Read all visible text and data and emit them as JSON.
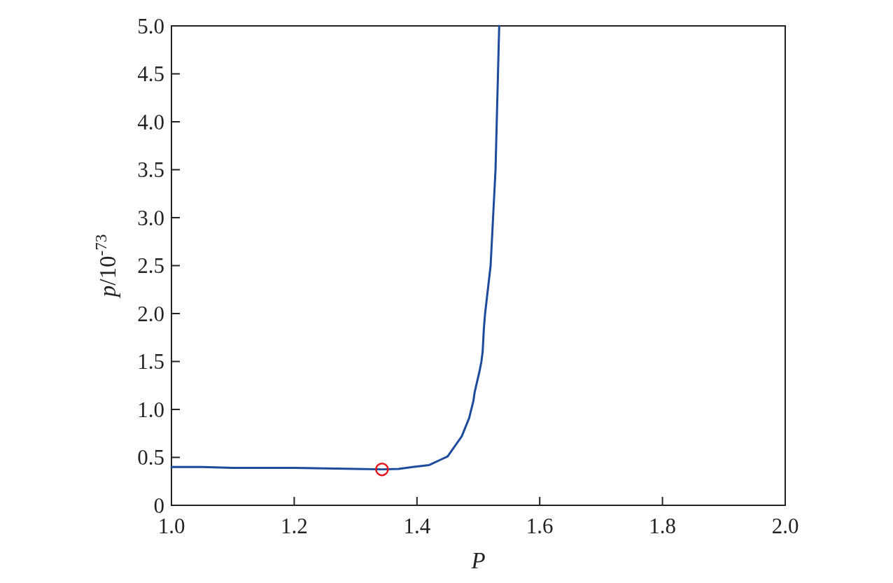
{
  "chart_data": {
    "type": "line",
    "xlabel": "P",
    "ylabel": "p/10$^{-73}$",
    "xlim": [
      1.0,
      2.0
    ],
    "ylim": [
      0,
      5.0
    ],
    "xticks": [
      {
        "value": 1.0,
        "label": "1.0"
      },
      {
        "value": 1.2,
        "label": "1.2"
      },
      {
        "value": 1.4,
        "label": "1.4"
      },
      {
        "value": 1.6,
        "label": "1.6"
      },
      {
        "value": 1.8,
        "label": "1.8"
      },
      {
        "value": 2.0,
        "label": "2.0"
      }
    ],
    "yticks": [
      0,
      {
        "value": 0.5,
        "label": "0.5"
      },
      {
        "value": 1.0,
        "label": "1.0"
      },
      {
        "value": 1.5,
        "label": "1.5"
      },
      {
        "value": 2.0,
        "label": "2.0"
      },
      {
        "value": 2.5,
        "label": "2.5"
      },
      {
        "value": 3.0,
        "label": "3.0"
      },
      {
        "value": 3.5,
        "label": "3.5"
      },
      {
        "value": 4.0,
        "label": "4.0"
      },
      {
        "value": 4.5,
        "label": "4.5"
      },
      {
        "value": 5.0,
        "label": "5.0"
      }
    ],
    "series": [
      {
        "color": "#1c4a9c",
        "x": [
          1.0,
          1.05,
          1.1,
          1.2,
          1.3,
          1.343,
          1.37,
          1.393,
          1.42,
          1.44,
          1.45,
          1.473,
          1.485,
          1.492,
          1.494,
          1.502,
          1.505,
          1.507,
          1.509,
          1.511,
          1.52,
          1.524,
          1.528,
          1.53,
          1.532,
          1.534
        ],
        "values": [
          0.4,
          0.4,
          0.39,
          0.39,
          0.38,
          0.375,
          0.38,
          0.4,
          0.42,
          0.48,
          0.51,
          0.72,
          0.91,
          1.09,
          1.18,
          1.4,
          1.5,
          1.6,
          1.84,
          2.0,
          2.5,
          3.0,
          3.5,
          4.0,
          4.5,
          5.0
        ]
      },
      {
        "type": "scatter",
        "color": "#e8141c",
        "marker": "circle",
        "x": [
          1.343
        ],
        "values": [
          0.375
        ]
      }
    ]
  }
}
